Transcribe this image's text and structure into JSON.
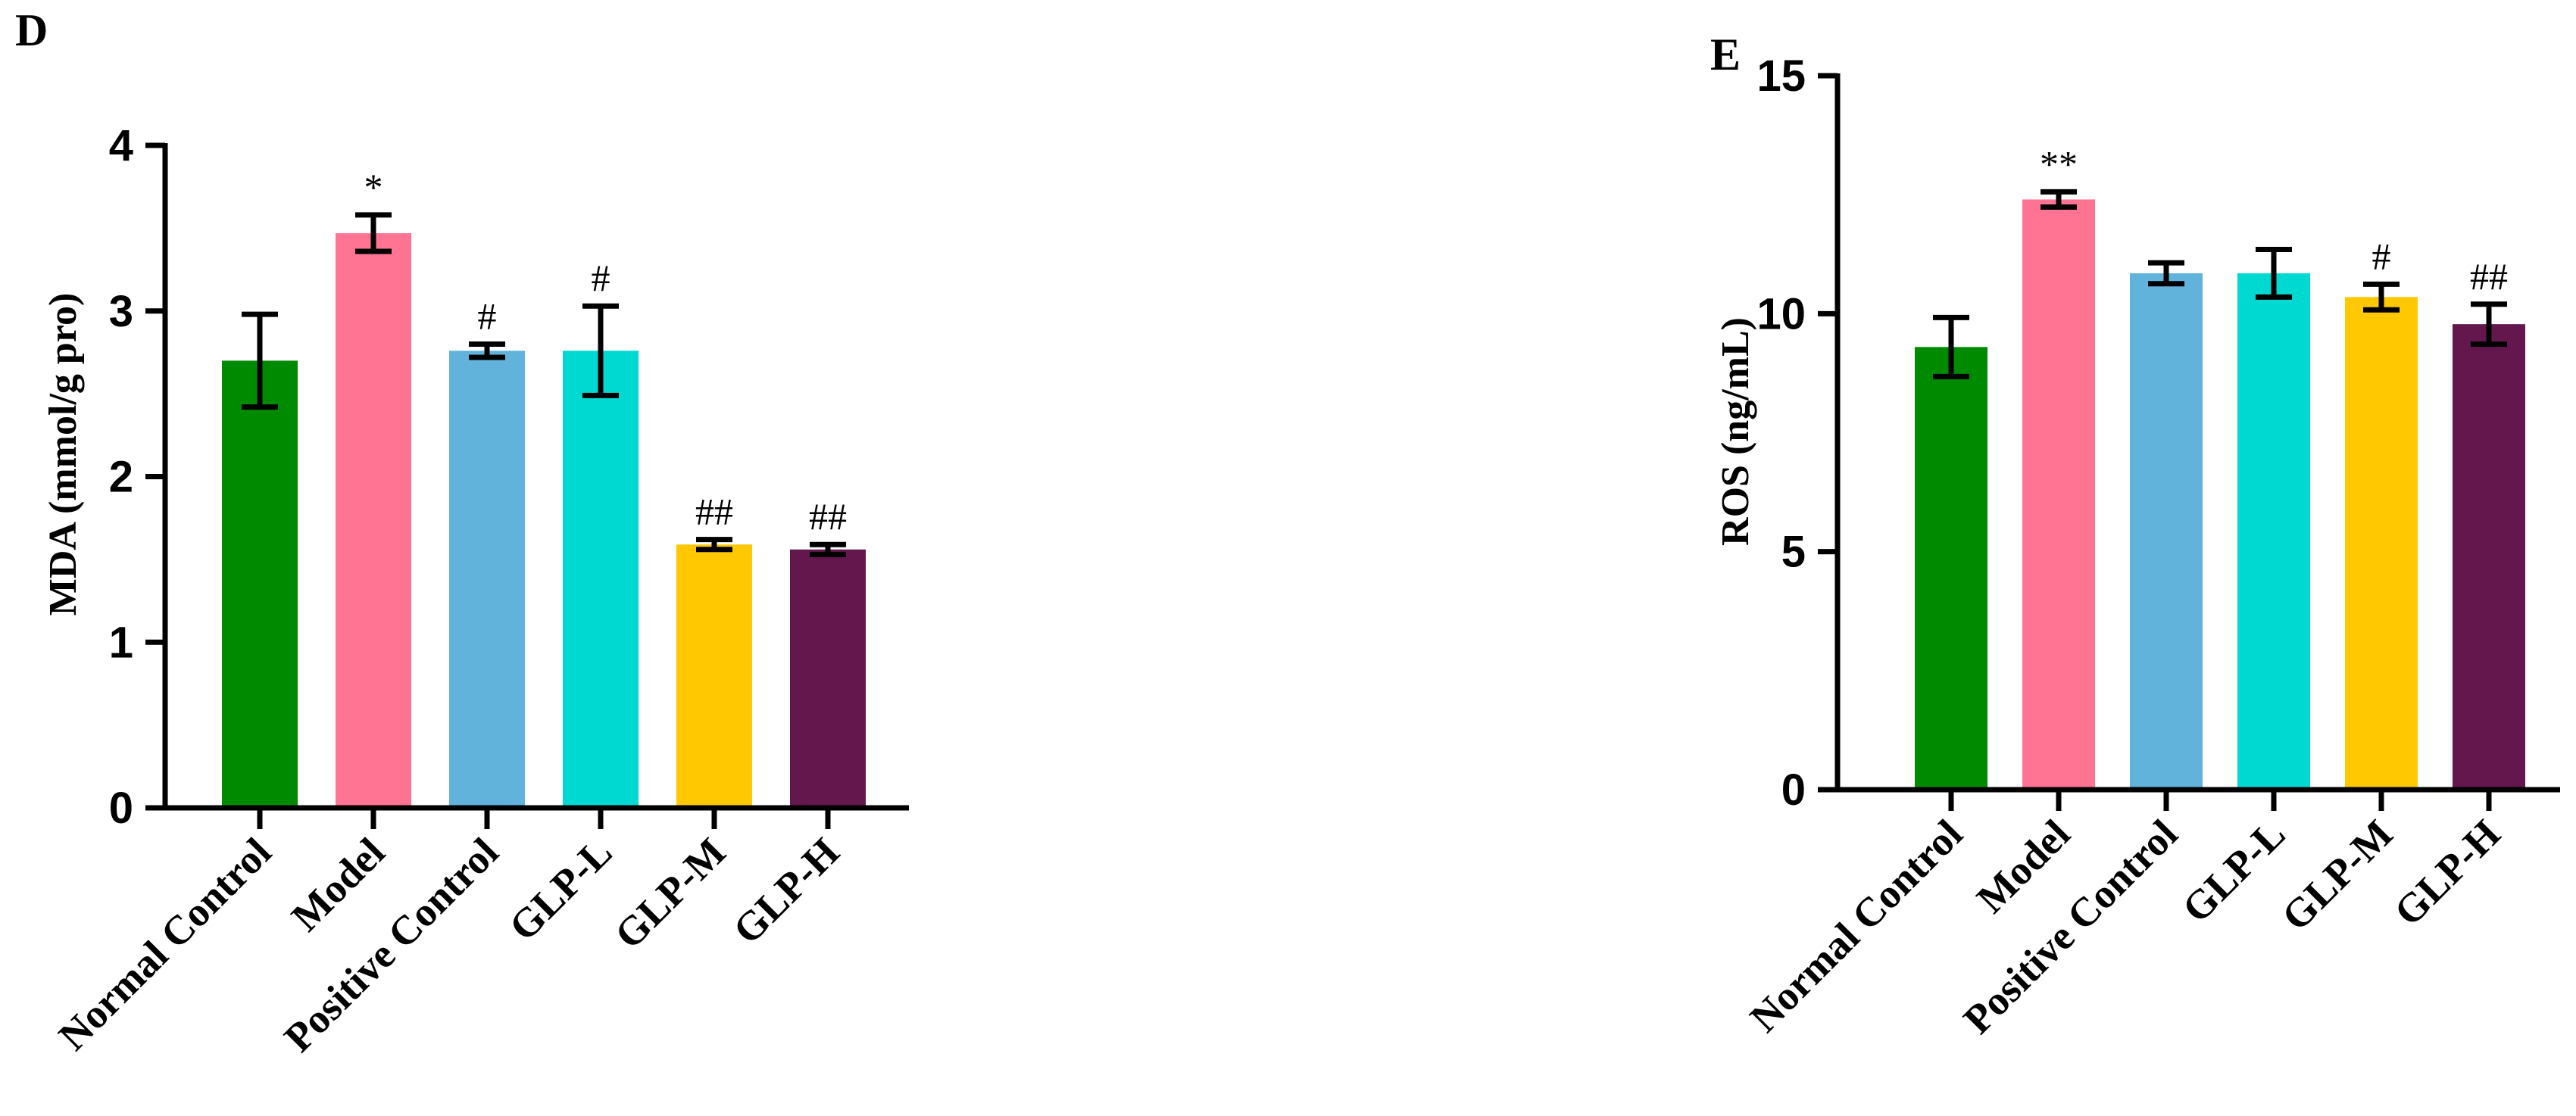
{
  "chart_data": [
    {
      "type": "bar",
      "panel_letter": "D",
      "ylabel": "MDA (mmol/g pro)",
      "ylim": [
        0,
        4
      ],
      "yticks": [
        "0",
        "1",
        "2",
        "3",
        "4"
      ],
      "categories": [
        "Normal Control",
        "Model",
        "Positive Control",
        "GLP-L",
        "GLP-M",
        "GLP-H"
      ],
      "values": [
        2.7,
        3.47,
        2.76,
        2.76,
        1.59,
        1.56
      ],
      "errors": [
        0.28,
        0.11,
        0.04,
        0.27,
        0.03,
        0.03
      ],
      "annotations": [
        "",
        "*",
        "#",
        "#",
        "##",
        "##"
      ],
      "colors": [
        "#008a00",
        "#ff7393",
        "#62b3dc",
        "#00d8d2",
        "#ffc800",
        "#63174d"
      ]
    },
    {
      "type": "bar",
      "panel_letter": "E",
      "ylabel": "ROS (ng/mL)",
      "ylim": [
        0,
        15
      ],
      "yticks": [
        "0",
        "5",
        "10",
        "15"
      ],
      "categories": [
        "Normal Control",
        "Model",
        "Positive Control",
        "GLP-L",
        "GLP-M",
        "GLP-H"
      ],
      "values": [
        9.3,
        12.4,
        10.85,
        10.85,
        10.35,
        9.78
      ],
      "errors": [
        0.62,
        0.16,
        0.22,
        0.5,
        0.27,
        0.42
      ],
      "annotations": [
        "",
        "**",
        "",
        "",
        "#",
        "##"
      ],
      "colors": [
        "#008a00",
        "#ff7393",
        "#62b3dc",
        "#00d8d2",
        "#ffc800",
        "#63174d"
      ]
    }
  ]
}
